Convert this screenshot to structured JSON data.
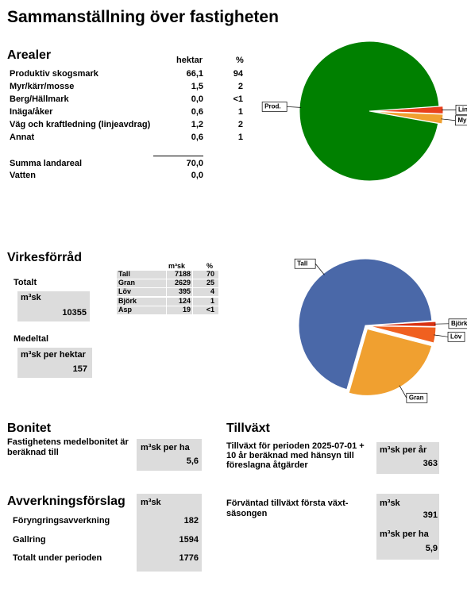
{
  "title": "Sammanställning över fastigheten",
  "arealer": {
    "heading": "Arealer",
    "columns": [
      "hektar",
      "%"
    ],
    "rows": [
      [
        "Produktiv skogsmark",
        "66,1",
        "94"
      ],
      [
        "Myr/kärr/mosse",
        "1,5",
        "2"
      ],
      [
        "Berg/Hällmark",
        "0,0",
        "<1"
      ],
      [
        "Inäga/åker",
        "0,6",
        "1"
      ],
      [
        "Väg och kraftledning (linjeavdrag)",
        "1,2",
        "2"
      ],
      [
        "Annat",
        "0,6",
        "1"
      ]
    ],
    "total": [
      "Summa landareal",
      "70,0"
    ],
    "water": [
      "Vatten",
      "0,0"
    ]
  },
  "virke": {
    "heading": "Virkesförråd",
    "columns": [
      "m³sk",
      "%"
    ],
    "rows": [
      [
        "Tall",
        "7188",
        "70"
      ],
      [
        "Gran",
        "2629",
        "25"
      ],
      [
        "Löv",
        "395",
        "4"
      ],
      [
        "Björk",
        "124",
        "1"
      ],
      [
        "Asp",
        "19",
        "<1"
      ]
    ],
    "total_label": "Totalt",
    "total_unit": "m³sk",
    "total_value": "10355",
    "mean_label": "Medeltal",
    "mean_unit": "m³sk per hektar",
    "mean_value": "157"
  },
  "bonitet": {
    "heading": "Bonitet",
    "text": "Fastighetens medelbonitet är beräknad till",
    "unit": "m³sk per ha",
    "value": "5,6"
  },
  "tillvaxt": {
    "heading": "Tillväxt",
    "text": "Tillväxt för perioden 2025-07-01 + 10 år beräknad med hänsyn till föreslagna åtgärder",
    "unit": "m³sk per år",
    "value": "363",
    "first_text": "Förväntad tillväxt första växt-säsongen",
    "first_unit": "m³sk",
    "first_value": "391",
    "first_unit_ha": "m³sk per ha",
    "first_value_ha": "5,9"
  },
  "avverkning": {
    "heading": "Avverkningsförslag",
    "unit": "m³sk",
    "rows": [
      [
        "Föryngringsavverkning",
        "182"
      ],
      [
        "Gallring",
        "1594"
      ],
      [
        "Totalt under perioden",
        "1776"
      ]
    ]
  },
  "chart_data": [
    {
      "type": "pie",
      "labels": [
        "Linjer",
        "Myr",
        "Prod."
      ],
      "values": [
        1.2,
        1.5,
        66.1
      ],
      "colors": [
        "#e8401c",
        "#f0a030",
        "#008000"
      ]
    },
    {
      "type": "pie",
      "labels": [
        null,
        "Björk",
        "Löv",
        "Gran",
        "Tall"
      ],
      "values": [
        19,
        124,
        395,
        2629,
        7188
      ],
      "colors": [
        "#a01808",
        "#d83010",
        "#f06020",
        "#f0a030",
        "#4a68a8"
      ]
    }
  ]
}
